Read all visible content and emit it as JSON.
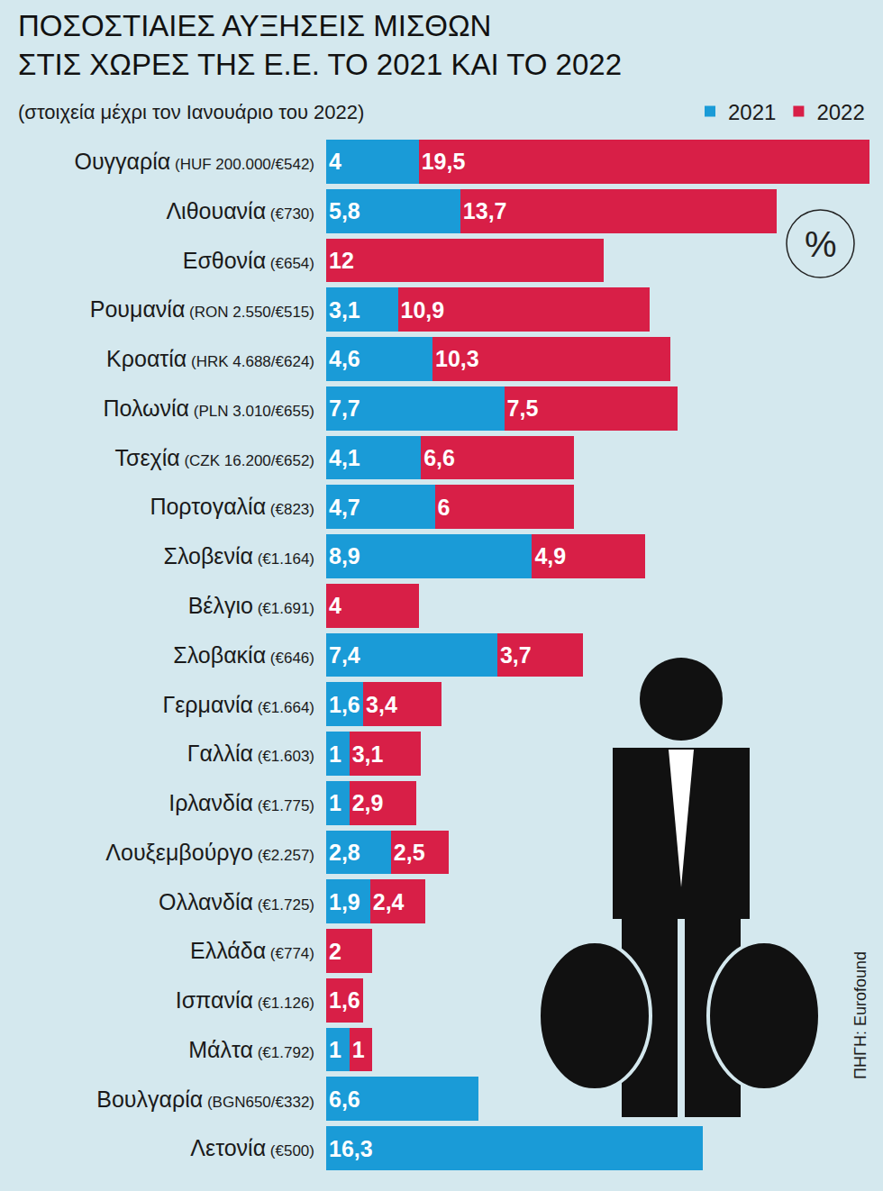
{
  "chart_data": {
    "type": "bar",
    "orientation": "horizontal",
    "stacked": true,
    "data_labels": true,
    "tick_labels": "y",
    "grid": false,
    "legend": "top-right",
    "title": "ΠΟΣΟΣΤΙΑΙΕΣ ΑΥΞΗΣΕΙΣ ΜΙΣΘΩΝ\nΣΤΙΣ ΧΩΡΕΣ ΤΗΣ Ε.Ε. ΤΟ 2021 ΚΑΙ ΤΟ 2022",
    "subtitle": "(στοιχεία μέχρι τον Ιανουάριο του 2022)",
    "annotations": [
      "%",
      "ΠΗΓΗ: Eurofound"
    ],
    "xlim": [
      0,
      23.5
    ],
    "categories": [
      "Ουγγαρία (HUF 200.000/€542)",
      "Λιθουανία (€730)",
      "Εσθονία (€654)",
      "Ρουμανία (RON 2.550/€515)",
      "Κροατία (HRK 4.688/€624)",
      "Πολωνία (PLN 3.010/€655)",
      "Τσεχία (CZK 16.200/€652)",
      "Πορτογαλία (€823)",
      "Σλοβενία (€1.164)",
      "Βέλγιο (€1.691)",
      "Σλοβακία (€646)",
      "Γερμανία (€1.664)",
      "Γαλλία (€1.603)",
      "Ιρλανδία (€1.775)",
      "Λουξεμβούργο (€2.257)",
      "Ολλανδία (€1.725)",
      "Ελλάδα (€774)",
      "Ισπανία (€1.126)",
      "Μάλτα (€1.792)",
      "Βουλγαρία (BGN650/€332)",
      "Λετονία (€500)"
    ],
    "series": [
      {
        "name": "2021",
        "color": "#1a9bd7",
        "values": [
          4,
          5.8,
          null,
          3.1,
          4.6,
          7.7,
          4.1,
          4.7,
          8.9,
          null,
          7.4,
          1.6,
          1,
          1,
          2.8,
          1.9,
          null,
          null,
          1,
          6.6,
          16.3
        ],
        "value_labels": [
          "4",
          "5,8",
          null,
          "3,1",
          "4,6",
          "7,7",
          "4,1",
          "4,7",
          "8,9",
          null,
          "7,4",
          "1,6",
          "1",
          "1",
          "2,8",
          "1,9",
          null,
          null,
          "1",
          "6,6",
          "16,3"
        ]
      },
      {
        "name": "2022",
        "color": "#d81f47",
        "values": [
          19.5,
          13.7,
          12,
          10.9,
          10.3,
          7.5,
          6.6,
          6,
          4.9,
          4,
          3.7,
          3.4,
          3.1,
          2.9,
          2.5,
          2.4,
          2,
          1.6,
          1,
          null,
          null
        ],
        "value_labels": [
          "19,5",
          "13,7",
          "12",
          "10,9",
          "10,3",
          "7,5",
          "6,6",
          "6",
          "4,9",
          "4",
          "3,7",
          "3,4",
          "3,1",
          "2,9",
          "2,5",
          "2,4",
          "2",
          "1,6",
          "1",
          null,
          null
        ]
      }
    ]
  }
}
